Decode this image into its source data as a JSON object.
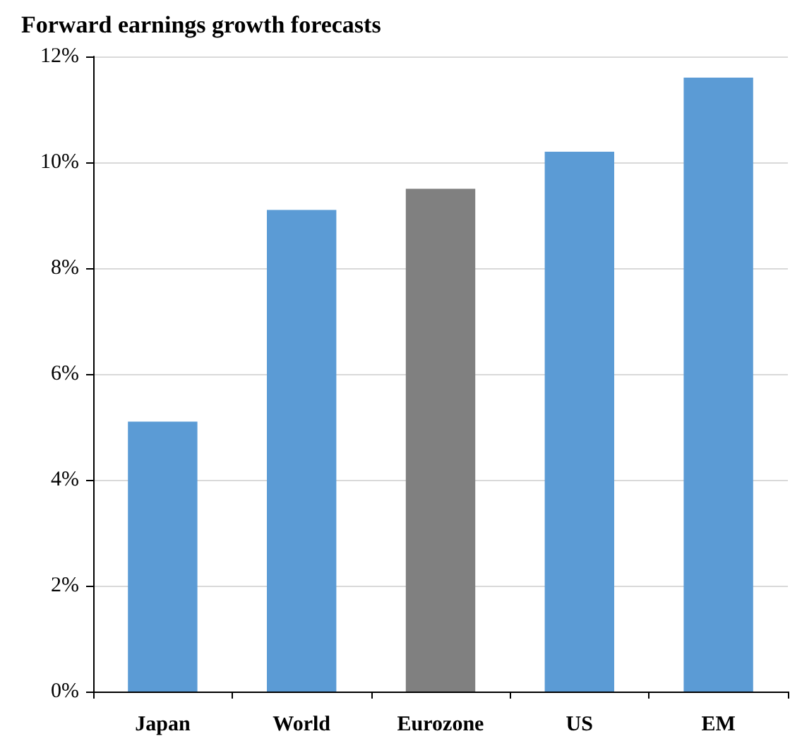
{
  "chart_data": {
    "type": "bar",
    "title": "Forward earnings growth forecasts",
    "categories": [
      "Japan",
      "World",
      "Eurozone",
      "US",
      "EM"
    ],
    "values": [
      5.1,
      9.1,
      9.5,
      10.2,
      11.6
    ],
    "colors": [
      "#5b9bd5",
      "#5b9bd5",
      "#808080",
      "#5b9bd5",
      "#5b9bd5"
    ],
    "ylim": [
      0,
      12
    ],
    "yticks": [
      {
        "value": 0,
        "label": "0%"
      },
      {
        "value": 2,
        "label": "2%"
      },
      {
        "value": 4,
        "label": "4%"
      },
      {
        "value": 6,
        "label": "6%"
      },
      {
        "value": 8,
        "label": "8%"
      },
      {
        "value": 10,
        "label": "10%"
      },
      {
        "value": 12,
        "label": "12%"
      }
    ],
    "grid": "y"
  }
}
